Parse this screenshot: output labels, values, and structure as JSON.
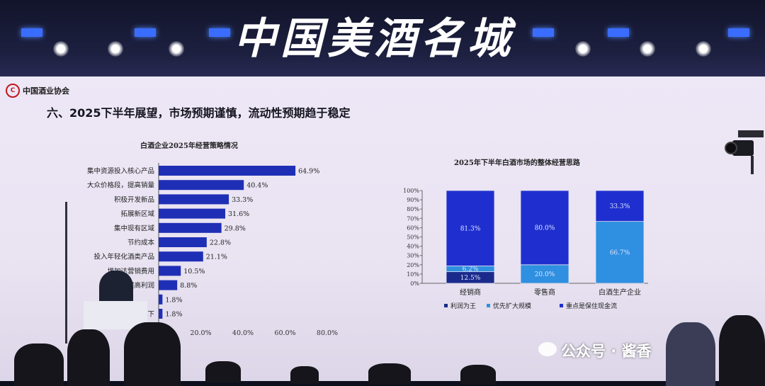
{
  "banner": {
    "text": "中国美酒名城"
  },
  "slide": {
    "org_name": "中国酒业协会",
    "title": "六、2025下半年展望，市场预期谨慎，流动性预期趋于稳定"
  },
  "chart_data": [
    {
      "type": "bar",
      "orientation": "horizontal",
      "title": "白酒企业2025年经营策略情况",
      "categories": [
        "集中资源投入核心产品",
        "大众价格段，提高销量",
        "积极开发新品",
        "拓展新区域",
        "集中现有区域",
        "节约成本",
        "投入年轻化酒类产品",
        "增加达营销费用",
        "高端化，提高利润",
        "",
        "减下"
      ],
      "values": [
        64.9,
        40.4,
        33.3,
        31.6,
        29.8,
        22.8,
        21.1,
        10.5,
        8.8,
        1.8,
        1.8
      ],
      "value_labels": [
        "64.9%",
        "40.4%",
        "33.3%",
        "31.6%",
        "29.8%",
        "22.8%",
        "21.1%",
        "10.5%",
        "8.8%",
        "1.8%",
        "1.8%"
      ],
      "x_ticks": [
        "20.0%",
        "40.0%",
        "60.0%",
        "80.0%"
      ],
      "xlim": [
        0,
        80
      ],
      "color": "#1f2fb5"
    },
    {
      "type": "bar",
      "stacked": true,
      "title": "2025年下半年白酒市场的整体经营思路",
      "categories": [
        "经销商",
        "零售商",
        "白酒生产企业"
      ],
      "series": [
        {
          "name": "利润为王",
          "values": [
            12.5,
            0,
            0
          ],
          "labels": [
            "12.5%",
            "",
            ""
          ],
          "color": "#1a2a8c"
        },
        {
          "name": "优先扩大规模",
          "values": [
            6.2,
            20.0,
            66.7
          ],
          "labels": [
            "6.2%",
            "20.0%",
            "66.7%"
          ],
          "color": "#2f8fe0"
        },
        {
          "name": "重点是保住现金流",
          "values": [
            81.3,
            80.0,
            33.3
          ],
          "labels": [
            "81.3%",
            "80.0%",
            "33.3%"
          ],
          "color": "#1f2fcf"
        }
      ],
      "y_ticks": [
        "0%",
        "10%",
        "20%",
        "30%",
        "40%",
        "50%",
        "60%",
        "70%",
        "80%",
        "90%",
        "100%"
      ],
      "ylim": [
        0,
        100
      ]
    }
  ],
  "watermark": {
    "text": "公众号 · 酱香"
  }
}
